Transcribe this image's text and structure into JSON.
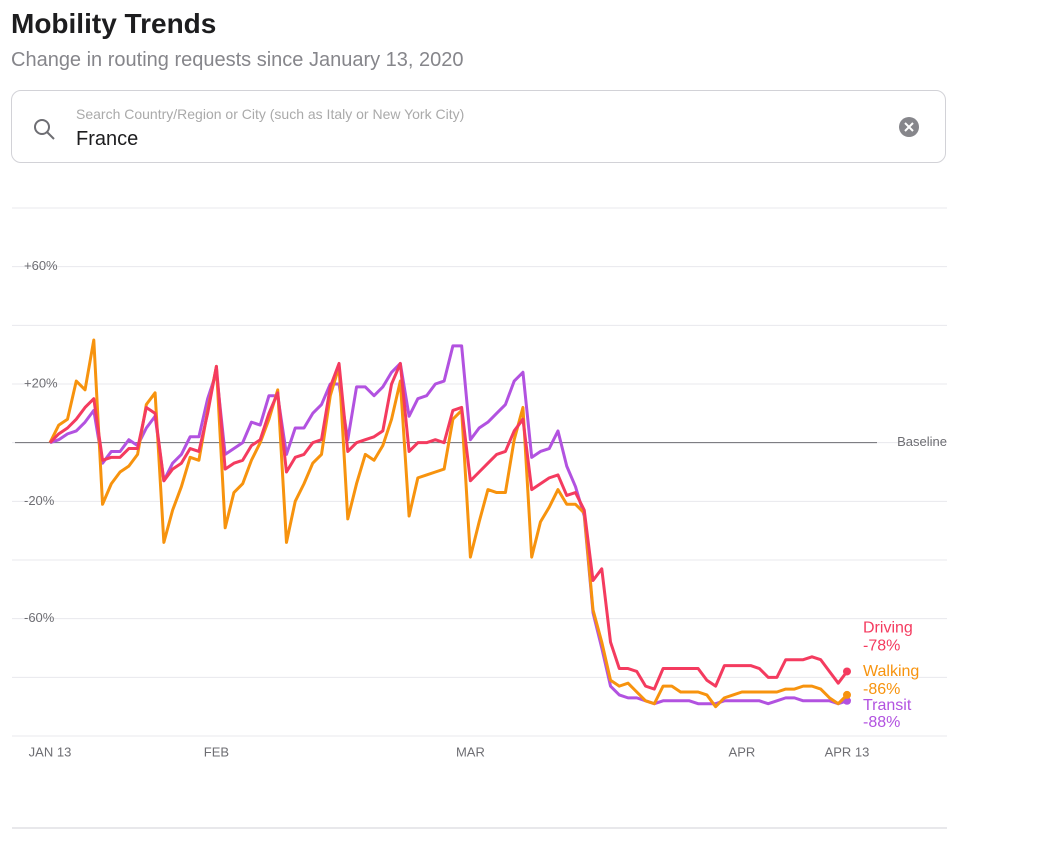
{
  "header": {
    "title": "Mobility Trends",
    "subtitle": "Change in routing requests since January 13, 2020"
  },
  "search": {
    "placeholder": "Search Country/Region or City (such as Italy or New York City)",
    "value": "France"
  },
  "chart_data": {
    "type": "line",
    "x": [
      0,
      1,
      2,
      3,
      4,
      5,
      6,
      7,
      8,
      9,
      10,
      11,
      12,
      13,
      14,
      15,
      16,
      17,
      18,
      19,
      20,
      21,
      22,
      23,
      24,
      25,
      26,
      27,
      28,
      29,
      30,
      31,
      32,
      33,
      34,
      35,
      36,
      37,
      38,
      39,
      40,
      41,
      42,
      43,
      44,
      45,
      46,
      47,
      48,
      49,
      50,
      51,
      52,
      53,
      54,
      55,
      56,
      57,
      58,
      59,
      60,
      61,
      62,
      63,
      64,
      65,
      66,
      67,
      68,
      69,
      70,
      71,
      72,
      73,
      74,
      75,
      76,
      77,
      78,
      79,
      80,
      81,
      82,
      83,
      84,
      85,
      86,
      87,
      88,
      89,
      90,
      91
    ],
    "xlim": [
      0,
      91
    ],
    "xticks": [
      {
        "value": 0,
        "label": "JAN 13"
      },
      {
        "value": 19,
        "label": "FEB"
      },
      {
        "value": 48,
        "label": "MAR"
      },
      {
        "value": 79,
        "label": "APR"
      },
      {
        "value": 91,
        "label": "APR 13"
      }
    ],
    "ylim": [
      -100,
      80
    ],
    "yticks": [
      {
        "value": 80,
        "label": null
      },
      {
        "value": 60,
        "label": "+60%"
      },
      {
        "value": 40,
        "label": null
      },
      {
        "value": 20,
        "label": "+20%"
      },
      {
        "value": 0,
        "label": null
      },
      {
        "value": -20,
        "label": "-20%"
      },
      {
        "value": -40,
        "label": null
      },
      {
        "value": -60,
        "label": "-60%"
      },
      {
        "value": -80,
        "label": null
      },
      {
        "value": -100,
        "label": null
      }
    ],
    "grid": true,
    "baseline": {
      "value": 0,
      "label": "Baseline"
    },
    "series": [
      {
        "name": "Driving",
        "color": "#f43b5f",
        "end_label": "-78%",
        "values": [
          0,
          3,
          5,
          8,
          12,
          15,
          -6,
          -5,
          -5,
          -2,
          -2,
          12,
          10,
          -13,
          -9,
          -7,
          -2,
          -3,
          10,
          26,
          -9,
          -7,
          -6,
          -1,
          1,
          10,
          17,
          -10,
          -5,
          -4,
          0,
          1,
          19,
          27,
          -3,
          0,
          1,
          2,
          4,
          20,
          27,
          -3,
          0,
          0,
          1,
          0,
          11,
          12,
          -13,
          -10,
          -7,
          -4,
          -3,
          4,
          8,
          -16,
          -14,
          -12,
          -11,
          -18,
          -17,
          -23,
          -47,
          -43,
          -68,
          -77,
          -77,
          -78,
          -83,
          -84,
          -77,
          -77,
          -77,
          -77,
          -77,
          -81,
          -83,
          -76,
          -76,
          -76,
          -76,
          -77,
          -80,
          -80,
          -74,
          -74,
          -74,
          -73,
          -74,
          -78,
          -82,
          -78
        ]
      },
      {
        "name": "Walking",
        "color": "#f7930e",
        "end_label": "-86%",
        "values": [
          0,
          6,
          8,
          21,
          18,
          35,
          -21,
          -14,
          -10,
          -8,
          -4,
          13,
          17,
          -34,
          -23,
          -15,
          -5,
          -6,
          11,
          26,
          -29,
          -17,
          -14,
          -6,
          0,
          8,
          18,
          -34,
          -20,
          -14,
          -7,
          -4,
          16,
          26,
          -26,
          -14,
          -4,
          -6,
          -1,
          8,
          21,
          -25,
          -12,
          -11,
          -10,
          -9,
          8,
          11,
          -39,
          -27,
          -16,
          -17,
          -17,
          1,
          12,
          -39,
          -27,
          -22,
          -16,
          -21,
          -21,
          -24,
          -57,
          -68,
          -81,
          -83,
          -82,
          -85,
          -88,
          -89,
          -83,
          -83,
          -85,
          -85,
          -85,
          -86,
          -90,
          -87,
          -86,
          -85,
          -85,
          -85,
          -85,
          -85,
          -84,
          -84,
          -83,
          -83,
          -84,
          -87,
          -89,
          -86
        ]
      },
      {
        "name": "Transit",
        "color": "#b252e0",
        "end_label": "-88%",
        "values": [
          0,
          1,
          3,
          4,
          7,
          11,
          -7,
          -3,
          -3,
          1,
          -1,
          5,
          9,
          -13,
          -7,
          -4,
          2,
          2,
          15,
          24,
          -4,
          -2,
          0,
          7,
          6,
          16,
          16,
          -4,
          5,
          5,
          10,
          13,
          20,
          20,
          1,
          19,
          19,
          16,
          19,
          24,
          27,
          9,
          15,
          16,
          20,
          21,
          33,
          33,
          1,
          5,
          7,
          10,
          13,
          21,
          24,
          -5,
          -3,
          -2,
          4,
          -8,
          -15,
          -25,
          -58,
          -70,
          -83,
          -86,
          -87,
          -87,
          -88,
          -89,
          -88,
          -88,
          -88,
          -88,
          -89,
          -89,
          -89,
          -88,
          -88,
          -88,
          -88,
          -88,
          -89,
          -88,
          -87,
          -87,
          -88,
          -88,
          -88,
          -88,
          -89,
          -88
        ]
      }
    ]
  }
}
